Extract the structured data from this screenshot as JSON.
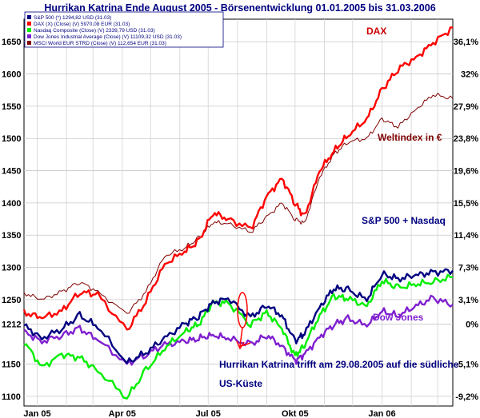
{
  "chart_data": {
    "type": "line",
    "title": "Hurrikan Katrina Ende August 2005 - Börsenentwicklung 01.01.2005 bis 31.03.2006",
    "xlabel": "",
    "ylabel": "",
    "x_range": [
      "2005-01-01",
      "2006-03-31"
    ],
    "ylim": [
      1085,
      1685
    ],
    "y_ticks_left": [
      "1650",
      "1600",
      "1550",
      "1500",
      "1450",
      "1400",
      "1350",
      "1300",
      "1250",
      "1212",
      "1150",
      "1100"
    ],
    "y_ticks_right": [
      "36,1%",
      "32%",
      "27,9%",
      "23,8%",
      "19,6%",
      "15,5%",
      "11,4%",
      "7,3%",
      "3,1%",
      "0%",
      "-5,1%",
      "-9,2%"
    ],
    "x_ticks": [
      "Jan 05",
      "Apr 05",
      "Jul 05",
      "Okt 05",
      "Jan 06"
    ],
    "grid": true,
    "legend_position": "top-left",
    "series": [
      {
        "name": "S&P 500 (*) 1294,82 USD (31.03)",
        "color": "#000080",
        "x": [
          "2005-01-01",
          "2005-01-20",
          "2005-02-10",
          "2005-03-01",
          "2005-03-20",
          "2005-04-20",
          "2005-05-10",
          "2005-05-30",
          "2005-06-20",
          "2005-07-05",
          "2005-07-20",
          "2005-08-05",
          "2005-08-29",
          "2005-09-15",
          "2005-10-01",
          "2005-10-15",
          "2005-10-25",
          "2005-11-10",
          "2005-11-25",
          "2005-12-10",
          "2005-12-30",
          "2006-01-15",
          "2006-02-01",
          "2006-02-20",
          "2006-03-10",
          "2006-03-31"
        ],
        "values": [
          1210,
          1190,
          1205,
          1225,
          1208,
          1152,
          1168,
          1190,
          1212,
          1225,
          1245,
          1252,
          1222,
          1242,
          1225,
          1185,
          1198,
          1238,
          1268,
          1265,
          1250,
          1290,
          1282,
          1288,
          1292,
          1295
        ]
      },
      {
        "name": "DAX (X) (Close) (V) 5970,08 EUR (31.03)",
        "color": "#ff0000",
        "x": [
          "2005-01-01",
          "2005-01-20",
          "2005-02-10",
          "2005-03-01",
          "2005-03-20",
          "2005-04-20",
          "2005-05-10",
          "2005-05-30",
          "2005-06-20",
          "2005-07-05",
          "2005-07-20",
          "2005-08-05",
          "2005-08-29",
          "2005-09-15",
          "2005-10-01",
          "2005-10-15",
          "2005-10-25",
          "2005-11-10",
          "2005-11-25",
          "2005-12-10",
          "2005-12-30",
          "2006-01-15",
          "2006-02-01",
          "2006-02-20",
          "2006-03-10",
          "2006-03-31"
        ],
        "values": [
          1230,
          1222,
          1232,
          1262,
          1258,
          1202,
          1248,
          1305,
          1325,
          1340,
          1385,
          1375,
          1360,
          1410,
          1438,
          1400,
          1378,
          1450,
          1480,
          1505,
          1530,
          1575,
          1608,
          1625,
          1648,
          1672
        ]
      },
      {
        "name": "Nasdaq Composite (Close) (V) 2339,79 USD (31.03)",
        "color": "#00ee00",
        "x": [
          "2005-01-01",
          "2005-01-20",
          "2005-02-10",
          "2005-03-01",
          "2005-03-20",
          "2005-04-20",
          "2005-05-10",
          "2005-05-30",
          "2005-06-20",
          "2005-07-05",
          "2005-07-20",
          "2005-08-05",
          "2005-08-29",
          "2005-09-15",
          "2005-10-01",
          "2005-10-15",
          "2005-10-25",
          "2005-11-10",
          "2005-11-25",
          "2005-12-10",
          "2005-12-30",
          "2006-01-15",
          "2006-02-01",
          "2006-02-20",
          "2006-03-10",
          "2006-03-31"
        ],
        "values": [
          1185,
          1145,
          1165,
          1160,
          1140,
          1098,
          1140,
          1175,
          1200,
          1212,
          1245,
          1245,
          1212,
          1230,
          1205,
          1162,
          1180,
          1225,
          1255,
          1252,
          1240,
          1280,
          1268,
          1274,
          1278,
          1285
        ]
      },
      {
        "name": "Dow Jones Industrial Average (Close) (V) 11109,32 USD (31.03)",
        "color": "#8020d0",
        "x": [
          "2005-01-01",
          "2005-01-20",
          "2005-02-10",
          "2005-03-01",
          "2005-03-20",
          "2005-04-20",
          "2005-05-10",
          "2005-05-30",
          "2005-06-20",
          "2005-07-05",
          "2005-07-20",
          "2005-08-05",
          "2005-08-29",
          "2005-09-15",
          "2005-10-01",
          "2005-10-15",
          "2005-10-25",
          "2005-11-10",
          "2005-11-25",
          "2005-12-10",
          "2005-12-30",
          "2006-01-15",
          "2006-02-01",
          "2006-02-20",
          "2006-03-10",
          "2006-03-31"
        ],
        "values": [
          1200,
          1185,
          1195,
          1205,
          1188,
          1150,
          1165,
          1180,
          1185,
          1190,
          1195,
          1190,
          1180,
          1195,
          1178,
          1155,
          1165,
          1192,
          1212,
          1220,
          1210,
          1232,
          1225,
          1240,
          1252,
          1242
        ]
      },
      {
        "name": "MSCI World EUR STRD (Close) (V) 112,654 EUR (31.03)",
        "color": "#800000",
        "x": [
          "2005-01-01",
          "2005-01-20",
          "2005-02-10",
          "2005-03-01",
          "2005-03-20",
          "2005-04-20",
          "2005-05-10",
          "2005-05-30",
          "2005-06-20",
          "2005-07-05",
          "2005-07-20",
          "2005-08-05",
          "2005-08-29",
          "2005-09-15",
          "2005-10-01",
          "2005-10-15",
          "2005-10-25",
          "2005-11-10",
          "2005-11-25",
          "2005-12-10",
          "2005-12-30",
          "2006-01-15",
          "2006-02-01",
          "2006-02-20",
          "2006-03-10",
          "2006-03-31"
        ],
        "values": [
          1260,
          1250,
          1262,
          1278,
          1262,
          1228,
          1262,
          1318,
          1330,
          1345,
          1370,
          1368,
          1355,
          1378,
          1400,
          1375,
          1368,
          1440,
          1475,
          1495,
          1500,
          1530,
          1518,
          1545,
          1568,
          1562
        ]
      }
    ],
    "annotations": [
      {
        "text": "DAX",
        "color": "#cc0000"
      },
      {
        "text": "Weltindex in €",
        "color": "#800000"
      },
      {
        "text": "S&P 500 + Nasdaq",
        "color": "#000080"
      },
      {
        "text": "Dow Jones",
        "color": "#8020d0"
      },
      {
        "text": "Hurrikan Katrina trifft am 29.08.2005 auf die südliche",
        "color": "#000080"
      },
      {
        "text": "US-Küste",
        "color": "#000080"
      }
    ]
  }
}
